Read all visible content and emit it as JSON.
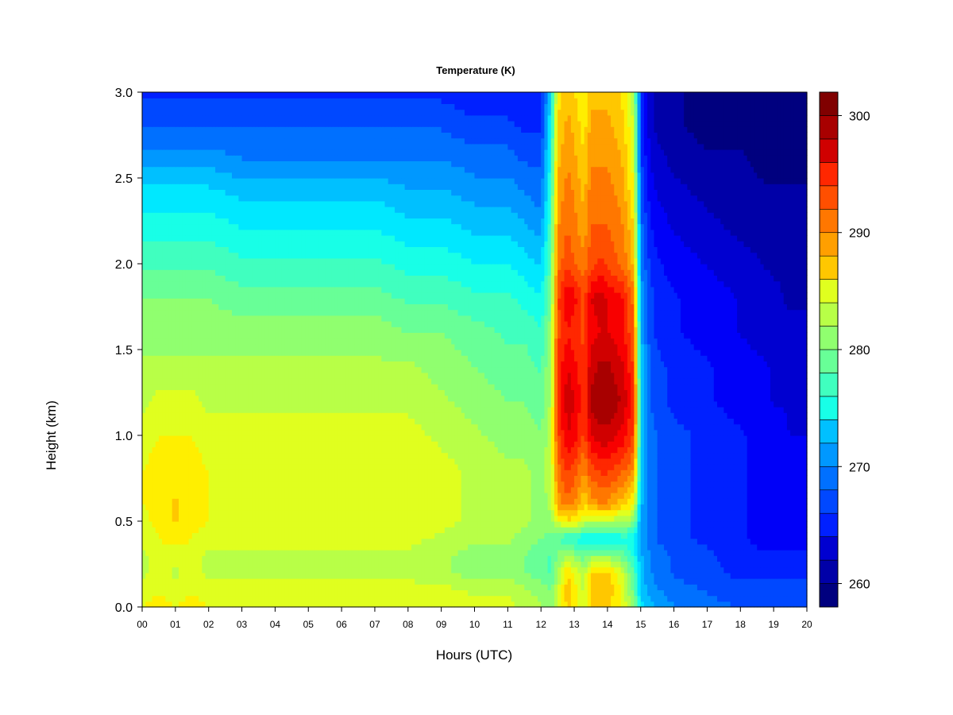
{
  "chart_data": {
    "type": "heatmap",
    "title": "Temperature (K)",
    "xlabel": "Hours (UTC)",
    "ylabel": "Height (km)",
    "x_ticks": [
      "00",
      "01",
      "02",
      "03",
      "04",
      "05",
      "06",
      "07",
      "08",
      "09",
      "10",
      "11",
      "12",
      "13",
      "14",
      "15",
      "16",
      "17",
      "18",
      "19",
      "20"
    ],
    "xlim": [
      0,
      20
    ],
    "y_ticks": [
      "0.0",
      "0.5",
      "1.0",
      "1.5",
      "2.0",
      "2.5",
      "3.0"
    ],
    "ylim": [
      0,
      3
    ],
    "colorbar": {
      "ticks": [
        "260",
        "270",
        "280",
        "290",
        "300"
      ],
      "range": [
        258,
        302
      ],
      "levels": 22,
      "colors": [
        "#00007f",
        "#0000a8",
        "#0000d0",
        "#0000f8",
        "#0020ff",
        "#0048ff",
        "#0070ff",
        "#0098ff",
        "#00c0ff",
        "#00e8ff",
        "#18ffe7",
        "#40ffbf",
        "#68ff97",
        "#90ff6f",
        "#b8ff47",
        "#e0ff1f",
        "#ffef00",
        "#ffc700",
        "#ff9f00",
        "#ff7700",
        "#ff4f00",
        "#ff2700",
        "#f80000",
        "#d00000",
        "#a80000",
        "#800000"
      ]
    },
    "x_hours": [
      0,
      0.5,
      1,
      1.5,
      2,
      3,
      4,
      5,
      6,
      7,
      8,
      9,
      10,
      11,
      11.5,
      12,
      12.3,
      12.5,
      12.8,
      13.0,
      13.3,
      13.5,
      13.8,
      14,
      14.3,
      14.5,
      14.8,
      15,
      15.3,
      15.5,
      16,
      17,
      18,
      19,
      19.5,
      20
    ],
    "y_heights": [
      0,
      0.1,
      0.2,
      0.3,
      0.4,
      0.5,
      0.6,
      0.8,
      1.0,
      1.2,
      1.4,
      1.6,
      1.8,
      2.0,
      2.2,
      2.4,
      2.6,
      2.8,
      3.0
    ],
    "values_K": [
      [
        285,
        286,
        285,
        286,
        285,
        285,
        285,
        285,
        285,
        285,
        285,
        285,
        284,
        284,
        283,
        282,
        281,
        284,
        287,
        286,
        284,
        287,
        287,
        287,
        286,
        284,
        281,
        274,
        272,
        271,
        270,
        269,
        268,
        268,
        268,
        268
      ],
      [
        284,
        285,
        284,
        285,
        284,
        284,
        284,
        284,
        284,
        284,
        284,
        284,
        283,
        283,
        282,
        281,
        280,
        283,
        288,
        286,
        283,
        288,
        288,
        288,
        286,
        284,
        279,
        273,
        271,
        270,
        269,
        268,
        267,
        267,
        267,
        267
      ],
      [
        283,
        284,
        283,
        284,
        283,
        283,
        283,
        283,
        283,
        283,
        283,
        282,
        281,
        281,
        280,
        279,
        278,
        282,
        287,
        285,
        282,
        287,
        287,
        287,
        285,
        283,
        278,
        272,
        270,
        269,
        268,
        267,
        266,
        266,
        266,
        266
      ],
      [
        283,
        284,
        284,
        284,
        283,
        283,
        283,
        283,
        283,
        283,
        283,
        282,
        281,
        281,
        280,
        279,
        278,
        280,
        282,
        281,
        279,
        281,
        281,
        281,
        280,
        279,
        276,
        272,
        270,
        269,
        268,
        267,
        265,
        265,
        265,
        265
      ],
      [
        284,
        285,
        286,
        285,
        284,
        284,
        284,
        284,
        284,
        284,
        284,
        283,
        282,
        282,
        281,
        280,
        279,
        279,
        276,
        276,
        275,
        275,
        274,
        274,
        275,
        276,
        275,
        271,
        269,
        268,
        267,
        266,
        265,
        264,
        264,
        264
      ],
      [
        284,
        286,
        287,
        286,
        285,
        285,
        285,
        285,
        285,
        285,
        285,
        284,
        283,
        283,
        282,
        281,
        281,
        284,
        286,
        286,
        283,
        283,
        283,
        283,
        282,
        282,
        280,
        271,
        269,
        268,
        267,
        266,
        265,
        264,
        264,
        264
      ],
      [
        285,
        286,
        287,
        286,
        285,
        285,
        285,
        285,
        285,
        285,
        285,
        284,
        283,
        283,
        282,
        281,
        282,
        289,
        291,
        290,
        287,
        289,
        290,
        290,
        288,
        287,
        285,
        272,
        269,
        268,
        267,
        266,
        265,
        264,
        264,
        264
      ],
      [
        285,
        286,
        286,
        286,
        285,
        285,
        285,
        285,
        285,
        285,
        285,
        284,
        283,
        282,
        282,
        281,
        283,
        291,
        294,
        293,
        290,
        293,
        294,
        294,
        293,
        292,
        290,
        273,
        269,
        268,
        267,
        266,
        265,
        264,
        264,
        264
      ],
      [
        284,
        285,
        285,
        285,
        284,
        284,
        284,
        284,
        284,
        284,
        284,
        283,
        282,
        281,
        281,
        280,
        283,
        293,
        297,
        296,
        293,
        297,
        298,
        298,
        297,
        296,
        293,
        274,
        269,
        268,
        267,
        266,
        265,
        264,
        263,
        263
      ],
      [
        283,
        284,
        284,
        284,
        283,
        283,
        283,
        283,
        283,
        283,
        283,
        282,
        281,
        280,
        280,
        279,
        282,
        294,
        298,
        297,
        294,
        299,
        300,
        300,
        299,
        298,
        294,
        274,
        268,
        267,
        266,
        265,
        264,
        263,
        263,
        263
      ],
      [
        282,
        282,
        282,
        282,
        282,
        282,
        282,
        282,
        282,
        282,
        282,
        281,
        280,
        279,
        279,
        278,
        282,
        294,
        297,
        296,
        294,
        298,
        299,
        299,
        298,
        297,
        293,
        273,
        268,
        267,
        266,
        265,
        264,
        263,
        262,
        262
      ],
      [
        281,
        281,
        281,
        281,
        281,
        281,
        281,
        281,
        281,
        281,
        280,
        280,
        279,
        278,
        278,
        277,
        281,
        293,
        295,
        294,
        293,
        296,
        297,
        297,
        296,
        295,
        292,
        272,
        267,
        266,
        265,
        264,
        263,
        262,
        262,
        262
      ],
      [
        280,
        280,
        280,
        280,
        280,
        279,
        279,
        279,
        279,
        279,
        278,
        278,
        277,
        277,
        276,
        275,
        280,
        293,
        297,
        296,
        293,
        297,
        298,
        297,
        296,
        295,
        291,
        271,
        267,
        266,
        265,
        264,
        263,
        262,
        261,
        261
      ],
      [
        278,
        278,
        278,
        278,
        278,
        277,
        277,
        277,
        277,
        277,
        276,
        276,
        275,
        275,
        274,
        273,
        279,
        291,
        293,
        292,
        291,
        293,
        294,
        293,
        292,
        291,
        288,
        270,
        266,
        265,
        264,
        263,
        262,
        261,
        261,
        261
      ],
      [
        276,
        276,
        276,
        276,
        276,
        275,
        275,
        275,
        275,
        275,
        274,
        274,
        273,
        273,
        272,
        271,
        278,
        290,
        292,
        291,
        289,
        292,
        292,
        292,
        291,
        290,
        287,
        269,
        265,
        264,
        263,
        262,
        261,
        261,
        260,
        260
      ],
      [
        274,
        274,
        274,
        274,
        274,
        273,
        273,
        273,
        273,
        273,
        272,
        272,
        271,
        271,
        270,
        269,
        277,
        289,
        291,
        290,
        288,
        291,
        291,
        291,
        290,
        289,
        285,
        268,
        264,
        263,
        262,
        261,
        260,
        260,
        260,
        260
      ],
      [
        271,
        271,
        271,
        271,
        271,
        270,
        270,
        270,
        270,
        270,
        270,
        270,
        269,
        269,
        268,
        268,
        276,
        288,
        290,
        289,
        287,
        290,
        290,
        290,
        289,
        288,
        284,
        267,
        263,
        262,
        261,
        260,
        260,
        259,
        259,
        259
      ],
      [
        268,
        268,
        268,
        268,
        268,
        268,
        268,
        268,
        268,
        268,
        268,
        268,
        267,
        267,
        266,
        266,
        275,
        287,
        289,
        288,
        286,
        289,
        289,
        289,
        288,
        287,
        283,
        266,
        262,
        261,
        260,
        259,
        259,
        258,
        258,
        259
      ],
      [
        266,
        266,
        266,
        266,
        266,
        266,
        266,
        266,
        266,
        266,
        266,
        266,
        265,
        265,
        265,
        265,
        274,
        286,
        288,
        287,
        285,
        288,
        288,
        288,
        287,
        286,
        282,
        266,
        262,
        261,
        260,
        259,
        259,
        258,
        258,
        259
      ]
    ]
  }
}
